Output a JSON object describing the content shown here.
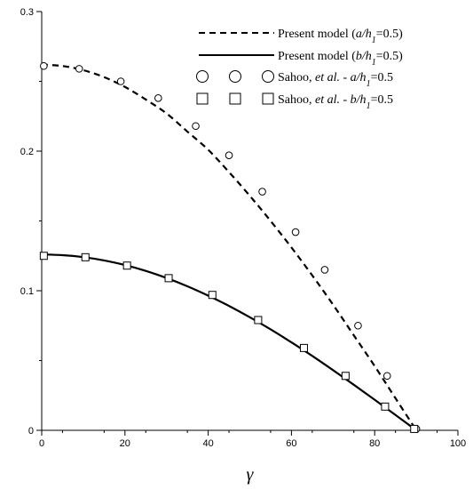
{
  "chart_data": {
    "type": "line",
    "xlabel": "γ",
    "ylabel": "",
    "xlim": [
      0,
      100
    ],
    "ylim": [
      0,
      0.3
    ],
    "xticks": [
      "0",
      "20",
      "40",
      "60",
      "80",
      "100"
    ],
    "yticks": [
      "0",
      "0.1",
      "0.2",
      "0.3"
    ],
    "grid": false,
    "legend_position": "top-right",
    "series": [
      {
        "name": "Present model (a/h1=0.5)",
        "label_parts": [
          "Present model (",
          "a/h",
          "1",
          "=0.5)"
        ],
        "style": "dashed-line",
        "x": [
          0,
          5,
          10,
          15,
          20,
          25,
          30,
          35,
          40,
          45,
          50,
          55,
          60,
          65,
          70,
          75,
          80,
          85,
          90
        ],
        "y": [
          0.262,
          0.261,
          0.258,
          0.253,
          0.246,
          0.237,
          0.227,
          0.214,
          0.201,
          0.185,
          0.168,
          0.15,
          0.131,
          0.111,
          0.09,
          0.068,
          0.046,
          0.023,
          0.0
        ]
      },
      {
        "name": "Present model (b/h1=0.5)",
        "label_parts": [
          "Present model (",
          "b/h",
          "1",
          "=0.5)"
        ],
        "style": "solid-line",
        "x": [
          0,
          5,
          10,
          15,
          20,
          25,
          30,
          35,
          40,
          45,
          50,
          55,
          60,
          65,
          70,
          75,
          80,
          85,
          90
        ],
        "y": [
          0.126,
          0.1255,
          0.1241,
          0.1217,
          0.1184,
          0.1142,
          0.1091,
          0.1032,
          0.0965,
          0.0891,
          0.081,
          0.0723,
          0.063,
          0.0533,
          0.0431,
          0.0326,
          0.0219,
          0.011,
          0.0
        ]
      },
      {
        "name": "Sahoo, et al. - a/h1=0.5",
        "label_parts": [
          "Sahoo, ",
          "et al.",
          " - ",
          "a/h",
          "1",
          "=0.5"
        ],
        "style": "circle-markers",
        "x": [
          0.5,
          9,
          19,
          28,
          37,
          45,
          53,
          61,
          68,
          76,
          83,
          90
        ],
        "y": [
          0.261,
          0.259,
          0.25,
          0.238,
          0.218,
          0.197,
          0.171,
          0.142,
          0.115,
          0.075,
          0.039,
          0.001
        ]
      },
      {
        "name": "Sahoo, et al. - b/h1=0.5",
        "label_parts": [
          "Sahoo, ",
          "et al.",
          " - ",
          "b/h",
          "1",
          "=0.5"
        ],
        "style": "square-markers",
        "x": [
          0.5,
          10.5,
          20.5,
          30.5,
          41,
          52,
          63,
          73,
          82.5,
          89.5
        ],
        "y": [
          0.125,
          0.124,
          0.118,
          0.109,
          0.097,
          0.079,
          0.059,
          0.039,
          0.017,
          0.001
        ]
      }
    ]
  }
}
